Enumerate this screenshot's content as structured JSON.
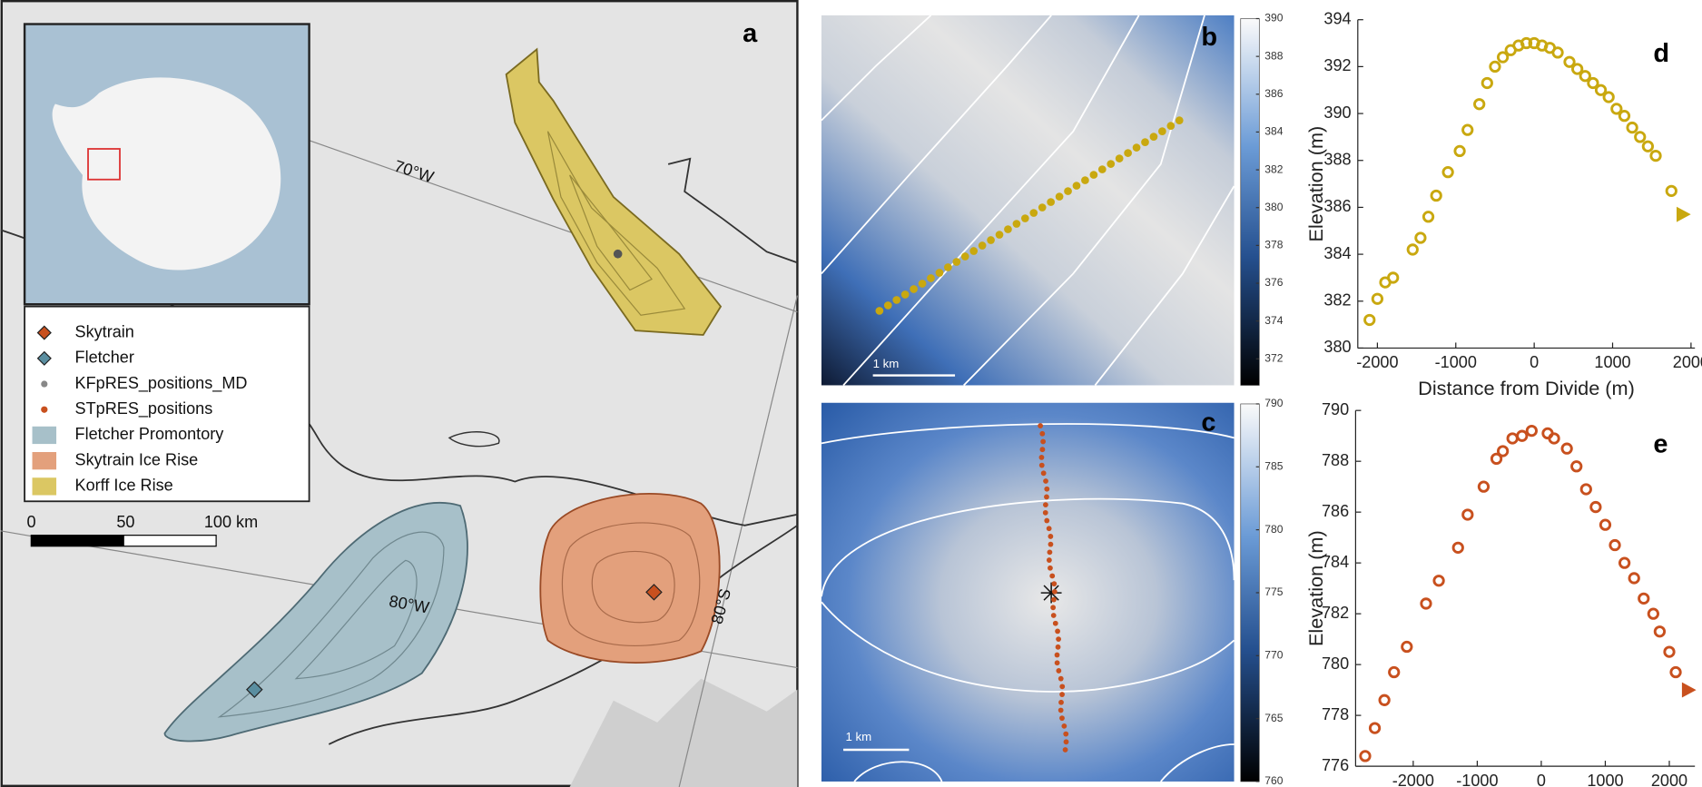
{
  "map": {
    "label": "a",
    "graticule": [
      "70°W",
      "80°W",
      "80°S"
    ],
    "legend": [
      {
        "name": "Skytrain",
        "color": "#c8501e",
        "kind": "diamond"
      },
      {
        "name": "Fletcher",
        "color": "#5a8ea0",
        "kind": "diamond"
      },
      {
        "name": "KFpRES_positions_MD",
        "color": "#888888",
        "kind": "dot"
      },
      {
        "name": "STpRES_positions",
        "color": "#c8501e",
        "kind": "dot"
      },
      {
        "name": "Fletcher Promontory",
        "color": "#a7c0c9",
        "kind": "patch"
      },
      {
        "name": "Skytrain Ice Rise",
        "color": "#e3a07c",
        "kind": "patch"
      },
      {
        "name": "Korff Ice Rise",
        "color": "#dbc763",
        "kind": "patch"
      }
    ],
    "scale_bar": {
      "ticks": [
        "0",
        "50",
        "100 km"
      ]
    }
  },
  "panels": [
    {
      "label": "b",
      "scale": "1 km",
      "colorbar": {
        "lim": [
          370.6,
          390
        ],
        "ticks": [
          372,
          374,
          376,
          378,
          380,
          382,
          384,
          386,
          388,
          390
        ]
      }
    },
    {
      "label": "c",
      "scale": "1 km",
      "colorbar": {
        "lim": [
          760,
          790
        ],
        "ticks": [
          760,
          765,
          770,
          775,
          780,
          785,
          790
        ]
      }
    }
  ],
  "chart_data": [
    {
      "type": "scatter",
      "label": "d",
      "color": "#c9a80f",
      "xlabel": "Distance from Divide (m)",
      "ylabel": "Elevation (m)",
      "x": [
        -2100,
        -2000,
        -1900,
        -1800,
        -1550,
        -1450,
        -1350,
        -1250,
        -1100,
        -950,
        -850,
        -700,
        -600,
        -500,
        -400,
        -300,
        -200,
        -100,
        0,
        100,
        200,
        300,
        450,
        550,
        650,
        750,
        850,
        950,
        1050,
        1150,
        1250,
        1350,
        1450,
        1550,
        1750
      ],
      "values": [
        381.2,
        382.1,
        382.8,
        383.0,
        384.2,
        384.7,
        385.6,
        386.5,
        387.5,
        388.4,
        389.3,
        390.4,
        391.3,
        392.0,
        392.4,
        392.7,
        392.9,
        393.0,
        393.0,
        392.9,
        392.8,
        392.6,
        392.2,
        391.9,
        391.6,
        391.3,
        391.0,
        390.7,
        390.2,
        389.9,
        389.4,
        389.0,
        388.6,
        388.2,
        386.7
      ],
      "end_point": {
        "x": 1900,
        "value": 385.7
      },
      "xlim": [
        -2250,
        2050
      ],
      "ylim": [
        380,
        394
      ],
      "xticks": [
        -2000,
        -1000,
        0,
        1000,
        2000
      ],
      "yticks": [
        380,
        382,
        384,
        386,
        388,
        390,
        392,
        394
      ]
    },
    {
      "type": "scatter",
      "label": "e",
      "color": "#c8501e",
      "xlabel": "Distance from Divide (m)",
      "ylabel": "Elevation (m)",
      "x": [
        -2750,
        -2600,
        -2450,
        -2300,
        -2100,
        -1800,
        -1600,
        -1300,
        -1150,
        -900,
        -700,
        -600,
        -450,
        -300,
        -150,
        100,
        200,
        400,
        550,
        700,
        850,
        1000,
        1150,
        1300,
        1450,
        1600,
        1750,
        1850,
        2000,
        2100
      ],
      "values": [
        776.4,
        777.5,
        778.6,
        779.7,
        780.7,
        782.4,
        783.3,
        784.6,
        785.9,
        787.0,
        788.1,
        788.4,
        788.9,
        789.0,
        789.2,
        789.1,
        788.9,
        788.5,
        787.8,
        786.9,
        786.2,
        785.5,
        784.7,
        784.0,
        783.4,
        782.6,
        782.0,
        781.3,
        780.5,
        779.7
      ],
      "end_point": {
        "x": 2300,
        "value": 779.0
      },
      "xlim": [
        -2900,
        2400
      ],
      "ylim": [
        776,
        790
      ],
      "xticks": [
        -2000,
        -1000,
        0,
        1000,
        2000
      ],
      "yticks": [
        776,
        778,
        780,
        782,
        784,
        786,
        788,
        790
      ]
    }
  ]
}
